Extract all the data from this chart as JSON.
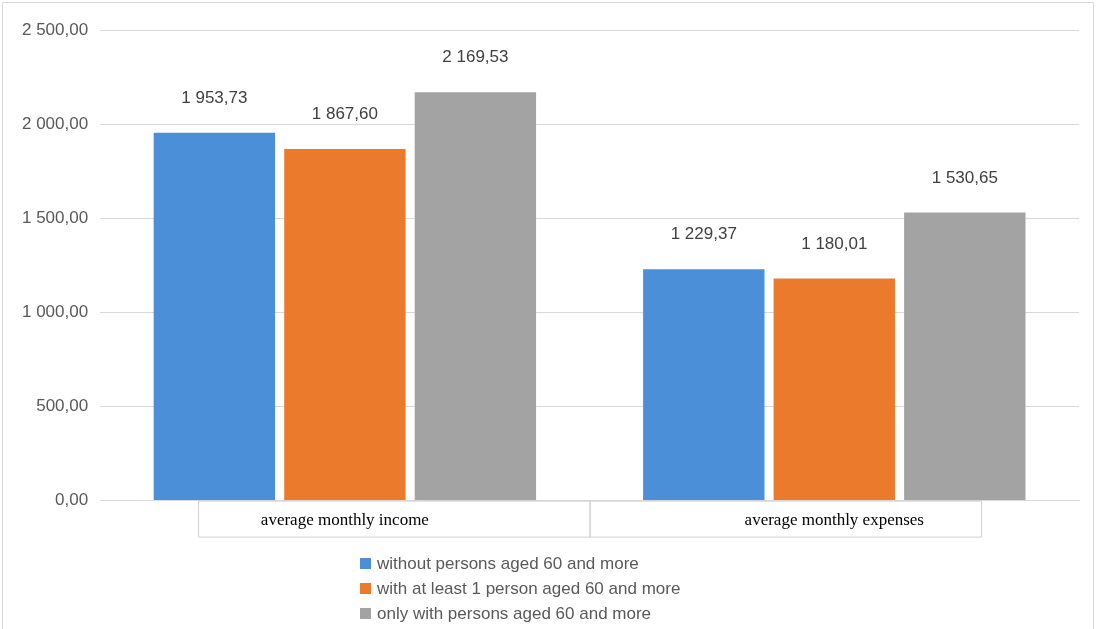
{
  "chart_data": {
    "type": "bar",
    "categories": [
      "average monthly income",
      "average monthly expenses"
    ],
    "series": [
      {
        "name": "without persons aged 60 and more",
        "color": "#4a8fd8",
        "values": [
          1953.73,
          1229.37
        ],
        "value_labels": [
          "1 953,73",
          "1 229,37"
        ]
      },
      {
        "name": "with at least 1 person aged 60 and more",
        "color": "#ec7a2c",
        "values": [
          1867.6,
          1180.01
        ],
        "value_labels": [
          "1 867,60",
          "1 180,01"
        ]
      },
      {
        "name": "only with persons aged 60 and more",
        "color": "#a3a3a3",
        "values": [
          2169.53,
          1530.65
        ],
        "value_labels": [
          "2 169,53",
          "1 530,65"
        ]
      }
    ],
    "ylim": [
      0,
      2500
    ],
    "yticks": [
      {
        "value": 0,
        "label": "0,00"
      },
      {
        "value": 500,
        "label": "500,00"
      },
      {
        "value": 1000,
        "label": "1 000,00"
      },
      {
        "value": 1500,
        "label": "1 500,00"
      },
      {
        "value": 2000,
        "label": "2 000,00"
      },
      {
        "value": 2500,
        "label": "2 500,00"
      }
    ],
    "grid": "y",
    "legend": "bottom"
  }
}
